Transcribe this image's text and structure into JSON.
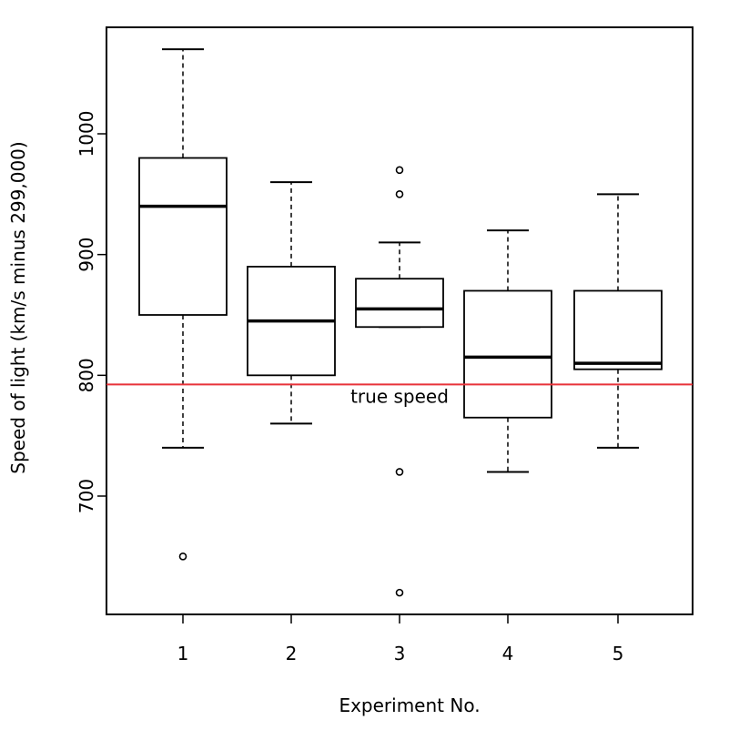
{
  "chart_data": {
    "type": "boxplot",
    "xlabel": "Experiment No.",
    "ylabel": "Speed of light (km/s minus 299,000)",
    "ylim": [
      600,
      1085
    ],
    "yticks": [
      700,
      800,
      900,
      1000
    ],
    "categories": [
      "1",
      "2",
      "3",
      "4",
      "5"
    ],
    "boxes": [
      {
        "label": "1",
        "whisker_low": 740,
        "q1": 850,
        "median": 940,
        "q3": 980,
        "whisker_high": 1070,
        "outliers": [
          650
        ]
      },
      {
        "label": "2",
        "whisker_low": 760,
        "q1": 800,
        "median": 845,
        "q3": 890,
        "whisker_high": 960,
        "outliers": []
      },
      {
        "label": "3",
        "whisker_low": 840,
        "q1": 840,
        "median": 855,
        "q3": 880,
        "whisker_high": 910,
        "outliers": [
          970,
          950,
          720,
          620
        ]
      },
      {
        "label": "4",
        "whisker_low": 720,
        "q1": 765,
        "median": 815,
        "q3": 870,
        "whisker_high": 920,
        "outliers": []
      },
      {
        "label": "5",
        "whisker_low": 740,
        "q1": 805,
        "median": 810,
        "q3": 870,
        "whisker_high": 950,
        "outliers": []
      }
    ],
    "reference_line": {
      "value": 792.458,
      "label": "true speed",
      "color": "#e8333a"
    },
    "grid": false,
    "legend": "none"
  }
}
